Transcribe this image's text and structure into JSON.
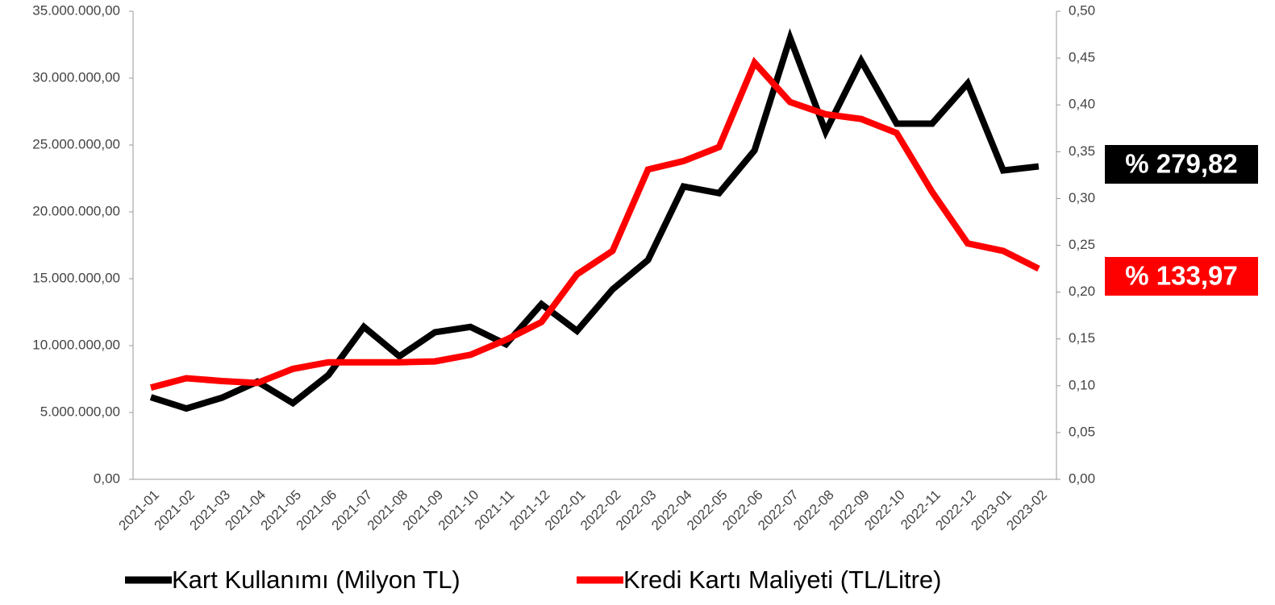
{
  "chart_data": {
    "type": "line",
    "categories": [
      "2021-01",
      "2021-02",
      "2021-03",
      "2021-04",
      "2021-05",
      "2021-06",
      "2021-07",
      "2021-08",
      "2021-09",
      "2021-10",
      "2021-11",
      "2021-12",
      "2022-01",
      "2022-02",
      "2022-03",
      "2022-04",
      "2022-05",
      "2022-06",
      "2022-07",
      "2022-08",
      "2022-09",
      "2022-10",
      "2022-11",
      "2022-12",
      "2023-01",
      "2023-02"
    ],
    "series": [
      {
        "name": "Kart Kullanımı (Milyon TL)",
        "color": "#000000",
        "values": [
          6140000,
          5300000,
          6100000,
          7300000,
          5700000,
          7800000,
          11400000,
          9200000,
          11000000,
          11400000,
          10100000,
          13100000,
          11100000,
          14200000,
          16400000,
          21900000,
          21400000,
          24600000,
          33000000,
          26000000,
          31300000,
          26600000,
          26600000,
          29600000,
          23100000,
          23400000
        ]
      },
      {
        "name": "Kredi Kartı Maliyeti (TL/Litre)",
        "color": "#ff0000",
        "axis": "y2",
        "values": [
          0.098,
          0.108,
          0.105,
          0.103,
          0.118,
          0.125,
          0.125,
          0.125,
          0.126,
          0.133,
          0.149,
          0.168,
          0.219,
          0.244,
          0.331,
          0.34,
          0.355,
          0.445,
          0.403,
          0.39,
          0.385,
          0.37,
          0.307,
          0.252,
          0.244,
          0.225
        ]
      }
    ],
    "ylim": [
      0,
      35000000
    ],
    "yticks": [
      {
        "value": 0,
        "label": "0,00"
      },
      {
        "value": 5000000,
        "label": "5.000.000,00"
      },
      {
        "value": 10000000,
        "label": "10.000.000,00"
      },
      {
        "value": 15000000,
        "label": "15.000.000,00"
      },
      {
        "value": 20000000,
        "label": "20.000.000,00"
      },
      {
        "value": 25000000,
        "label": "25.000.000,00"
      },
      {
        "value": 30000000,
        "label": "30.000.000,00"
      },
      {
        "value": 35000000,
        "label": "35.000.000,00"
      }
    ],
    "y2lim": [
      0,
      0.5
    ],
    "y2ticks": [
      {
        "value": 0,
        "label": "0,00"
      },
      {
        "value": 0.05,
        "label": "0,05"
      },
      {
        "value": 0.1,
        "label": "0,10"
      },
      {
        "value": 0.15,
        "label": "0,15"
      },
      {
        "value": 0.2,
        "label": "0,20"
      },
      {
        "value": 0.25,
        "label": "0,25"
      },
      {
        "value": 0.3,
        "label": "0,30"
      },
      {
        "value": 0.35,
        "label": "0,35"
      },
      {
        "value": 0.4,
        "label": "0,40"
      },
      {
        "value": 0.45,
        "label": "0,45"
      },
      {
        "value": 0.5,
        "label": "0,50"
      }
    ],
    "annotations": [
      {
        "text": "% 279,82",
        "color": "#000000"
      },
      {
        "text": "% 133,97",
        "color": "#ff0000"
      }
    ],
    "legend": "bottom"
  }
}
